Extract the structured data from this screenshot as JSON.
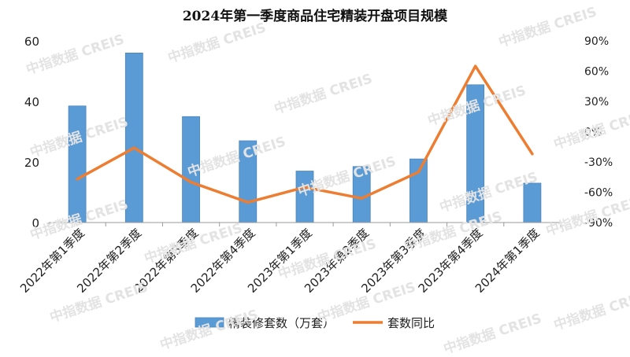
{
  "watermark": "中指数据 CREIS",
  "chart_data": {
    "type": "bar",
    "title": "2024年第一季度商品住宅精装开盘项目规模",
    "categories": [
      "2022年第1季度",
      "2022年第2季度",
      "2022年第3季度",
      "2022年第4季度",
      "2023年第1季度",
      "2023年第2季度",
      "2023年第3季度",
      "2023年第4季度",
      "2024年第1季度"
    ],
    "series": [
      {
        "name": "精装修套数（万套）",
        "type": "bar",
        "axis": "left",
        "color": "#5b9bd5",
        "values": [
          38.5,
          56,
          35,
          27,
          17,
          18.5,
          21,
          45.5,
          13
        ]
      },
      {
        "name": "套数同比",
        "type": "line",
        "axis": "right",
        "color": "#ed7d31",
        "values": [
          -47,
          -16,
          -50,
          -70,
          -55,
          -66,
          -40,
          65,
          -22
        ]
      }
    ],
    "y_left": {
      "min": 0,
      "max": 60,
      "ticks": [
        "0",
        "20",
        "40",
        "60"
      ]
    },
    "y_right": {
      "min": -90,
      "max": 90,
      "ticks": [
        "-90%",
        "-60%",
        "-30%",
        "0%",
        "30%",
        "60%",
        "90%"
      ]
    },
    "grid": false,
    "legend_position": "bottom"
  }
}
